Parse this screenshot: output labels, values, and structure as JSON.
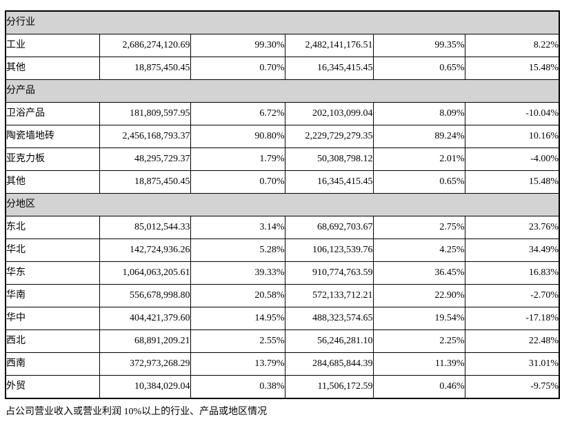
{
  "table": {
    "sections": [
      {
        "header": "分行业",
        "rows": [
          {
            "name": "工业",
            "c1": "2,686,274,120.69",
            "c2": "99.30%",
            "c3": "2,482,141,176.51",
            "c4": "99.35%",
            "c5": "8.22%"
          },
          {
            "name": "其他",
            "c1": "18,875,450.45",
            "c2": "0.70%",
            "c3": "16,345,415.45",
            "c4": "0.65%",
            "c5": "15.48%"
          }
        ]
      },
      {
        "header": "分产品",
        "rows": [
          {
            "name": "卫浴产品",
            "c1": "181,809,597.95",
            "c2": "6.72%",
            "c3": "202,103,099.04",
            "c4": "8.09%",
            "c5": "-10.04%"
          },
          {
            "name": "陶瓷墙地砖",
            "c1": "2,456,168,793.37",
            "c2": "90.80%",
            "c3": "2,229,729,279.35",
            "c4": "89.24%",
            "c5": "10.16%"
          },
          {
            "name": "亚克力板",
            "c1": "48,295,729.37",
            "c2": "1.79%",
            "c3": "50,308,798.12",
            "c4": "2.01%",
            "c5": "-4.00%"
          },
          {
            "name": "其他",
            "c1": "18,875,450.45",
            "c2": "0.70%",
            "c3": "16,345,415.45",
            "c4": "0.65%",
            "c5": "15.48%"
          }
        ]
      },
      {
        "header": "分地区",
        "rows": [
          {
            "name": "东北",
            "c1": "85,012,544.33",
            "c2": "3.14%",
            "c3": "68,692,703.67",
            "c4": "2.75%",
            "c5": "23.76%"
          },
          {
            "name": "华北",
            "c1": "142,724,936.26",
            "c2": "5.28%",
            "c3": "106,123,539.76",
            "c4": "4.25%",
            "c5": "34.49%"
          },
          {
            "name": "华东",
            "c1": "1,064,063,205.61",
            "c2": "39.33%",
            "c3": "910,774,763.59",
            "c4": "36.45%",
            "c5": "16.83%"
          },
          {
            "name": "华南",
            "c1": "556,678,998.80",
            "c2": "20.58%",
            "c3": "572,133,712.21",
            "c4": "22.90%",
            "c5": "-2.70%"
          },
          {
            "name": "华中",
            "c1": "404,421,379.60",
            "c2": "14.95%",
            "c3": "488,323,574.65",
            "c4": "19.54%",
            "c5": "-17.18%"
          },
          {
            "name": "西北",
            "c1": "68,891,209.21",
            "c2": "2.55%",
            "c3": "56,246,281.10",
            "c4": "2.25%",
            "c5": "22.48%"
          },
          {
            "name": "西南",
            "c1": "372,973,268.29",
            "c2": "13.79%",
            "c3": "284,685,844.39",
            "c4": "11.39%",
            "c5": "31.01%"
          },
          {
            "name": "外贸",
            "c1": "10,384,029.04",
            "c2": "0.38%",
            "c3": "11,506,172.59",
            "c4": "0.46%",
            "c5": "-9.75%"
          }
        ]
      }
    ]
  },
  "footer_note": "占公司营业收入或营业利润 10%以上的行业、产品或地区情况",
  "colors": {
    "section_bg": "#d3d3d3",
    "border": "#000000",
    "text": "#000000",
    "page_bg": "#ffffff"
  }
}
